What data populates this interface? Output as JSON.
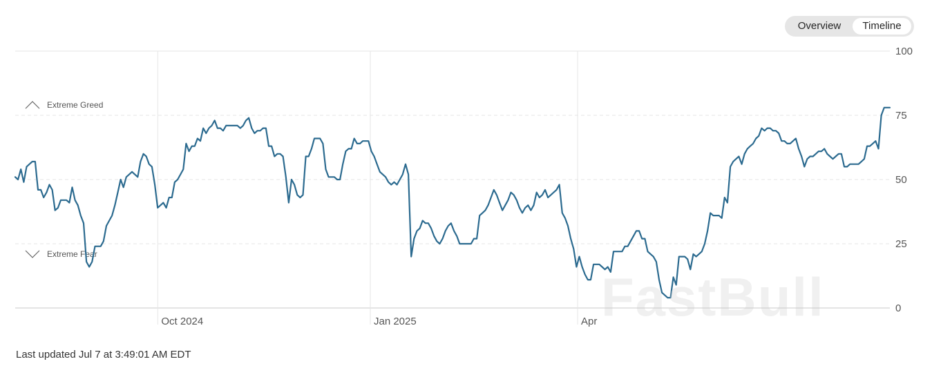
{
  "toggle": {
    "overview_label": "Overview",
    "timeline_label": "Timeline",
    "selected": "Timeline"
  },
  "footer": {
    "last_updated": "Last updated Jul 7 at 3:49:01 AM EDT"
  },
  "watermark": {
    "text": "FastBull"
  },
  "colors": {
    "line": "#2b6a8f",
    "grid": "#e6e6e6",
    "axis": "#c8c8c8",
    "label": "#555555"
  },
  "chart_data": {
    "type": "line",
    "ylim": [
      0,
      100
    ],
    "yticks": [
      0,
      25,
      50,
      75,
      100
    ],
    "zone_labels": [
      {
        "label": "Extreme Greed",
        "icon": "chevron-up-icon",
        "value": 79
      },
      {
        "label": "Extreme Fear",
        "icon": "chevron-down-icon",
        "value": 21
      }
    ],
    "xticks": [
      {
        "label": "Oct 2024",
        "pos": 0.163
      },
      {
        "label": "Jan 2025",
        "pos": 0.406
      },
      {
        "label": "Apr",
        "pos": 0.643
      }
    ],
    "values": [
      51,
      50,
      54,
      49,
      55,
      56,
      57,
      57,
      46,
      46,
      43,
      45,
      48,
      46,
      38,
      39,
      42,
      42,
      42,
      41,
      47,
      42,
      40,
      36,
      33,
      18,
      16,
      18,
      24,
      24,
      24,
      26,
      32,
      34,
      36,
      40,
      45,
      50,
      47,
      51,
      52,
      53,
      52,
      51,
      57,
      60,
      59,
      56,
      55,
      48,
      39,
      40,
      41,
      39,
      43,
      43,
      49,
      50,
      52,
      54,
      64,
      61,
      63,
      63,
      66,
      65,
      70,
      68,
      70,
      71,
      73,
      70,
      70,
      69,
      71,
      71,
      71,
      71,
      71,
      70,
      71,
      73,
      74,
      70,
      68,
      69,
      69,
      70,
      70,
      63,
      63,
      59,
      60,
      60,
      59,
      51,
      41,
      50,
      48,
      44,
      43,
      44,
      59,
      59,
      62,
      66,
      66,
      66,
      64,
      54,
      51,
      51,
      51,
      50,
      50,
      56,
      61,
      62,
      62,
      66,
      64,
      64,
      65,
      65,
      65,
      61,
      59,
      56,
      53,
      52,
      51,
      49,
      48,
      49,
      48,
      50,
      52,
      56,
      52,
      20,
      27,
      30,
      31,
      34,
      33,
      33,
      31,
      28,
      26,
      25,
      27,
      30,
      32,
      33,
      30,
      28,
      25,
      25,
      25,
      25,
      25,
      27,
      27,
      36,
      37,
      38,
      40,
      43,
      46,
      44,
      41,
      38,
      40,
      42,
      45,
      44,
      42,
      39,
      37,
      39,
      40,
      38,
      40,
      45,
      43,
      44,
      46,
      43,
      44,
      45,
      46,
      48,
      37,
      35,
      32,
      27,
      23,
      16,
      20,
      16,
      13,
      11,
      11,
      17,
      17,
      17,
      16,
      15,
      16,
      14,
      22,
      22,
      22,
      22,
      24,
      24,
      26,
      28,
      30,
      30,
      27,
      27,
      22,
      21,
      20,
      18,
      11,
      6,
      5,
      4,
      4,
      12,
      9,
      20,
      20,
      20,
      19,
      15,
      21,
      20,
      21,
      22,
      25,
      30,
      37,
      36,
      36,
      36,
      35,
      43,
      41,
      55,
      57,
      58,
      59,
      56,
      60,
      62,
      63,
      64,
      66,
      67,
      70,
      69,
      70,
      70,
      69,
      69,
      68,
      65,
      65,
      64,
      64,
      65,
      66,
      62,
      59,
      55,
      58,
      59,
      59,
      60,
      61,
      61,
      62,
      60,
      59,
      58,
      59,
      60,
      60,
      55,
      55,
      56,
      56,
      56,
      56,
      57,
      58,
      63,
      63,
      64,
      65,
      62,
      75,
      78,
      78,
      78
    ]
  }
}
